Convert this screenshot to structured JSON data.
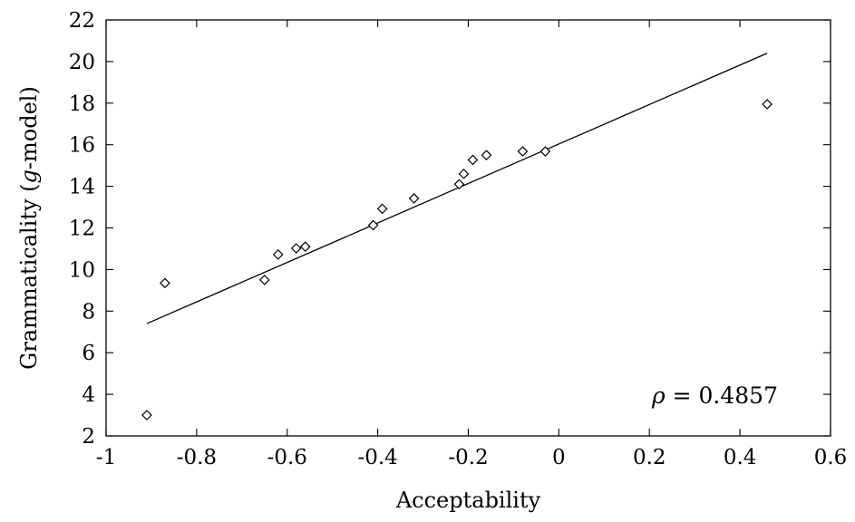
{
  "chart_data": {
    "type": "scatter",
    "xlabel": "Acceptability",
    "ylabel": "Grammaticality (g-model)",
    "ylabel_parts": [
      "Grammaticality (",
      "g",
      "-model)"
    ],
    "xlim": [
      -1,
      0.6
    ],
    "ylim": [
      2,
      22
    ],
    "x_ticks": [
      -1,
      -0.8,
      -0.6,
      -0.4,
      -0.2,
      0,
      0.2,
      0.4,
      0.6
    ],
    "x_tick_labels": [
      "-1",
      "-0.8",
      "-0.6",
      "-0.4",
      "-0.2",
      "0",
      "0.2",
      "0.4",
      "0.6"
    ],
    "y_ticks": [
      2,
      4,
      6,
      8,
      10,
      12,
      14,
      16,
      18,
      20,
      22
    ],
    "y_tick_labels": [
      "2",
      "4",
      "6",
      "8",
      "10",
      "12",
      "14",
      "16",
      "18",
      "20",
      "22"
    ],
    "grid": false,
    "marker": "diamond",
    "points": [
      {
        "x": -0.91,
        "y": 3.0
      },
      {
        "x": -0.87,
        "y": 9.35
      },
      {
        "x": -0.65,
        "y": 9.5
      },
      {
        "x": -0.62,
        "y": 10.72
      },
      {
        "x": -0.58,
        "y": 11.02
      },
      {
        "x": -0.56,
        "y": 11.1
      },
      {
        "x": -0.41,
        "y": 12.13
      },
      {
        "x": -0.39,
        "y": 12.92
      },
      {
        "x": -0.32,
        "y": 13.42
      },
      {
        "x": -0.22,
        "y": 14.1
      },
      {
        "x": -0.21,
        "y": 14.6
      },
      {
        "x": -0.19,
        "y": 15.27
      },
      {
        "x": -0.16,
        "y": 15.5
      },
      {
        "x": -0.08,
        "y": 15.68
      },
      {
        "x": -0.03,
        "y": 15.68
      },
      {
        "x": 0.46,
        "y": 17.95
      }
    ],
    "fit_line": {
      "x": [
        -0.91,
        0.46
      ],
      "y": [
        7.4,
        20.4
      ]
    },
    "annotation": {
      "symbol": "ρ",
      "text": " = 0.4857",
      "placement": "bottom-right"
    }
  }
}
